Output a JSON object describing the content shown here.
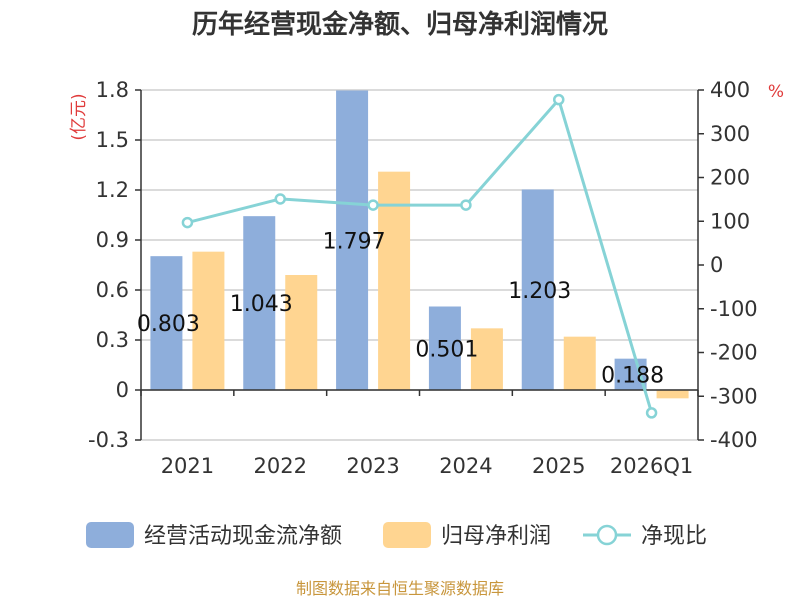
{
  "title": "历年经营现金净额、归母净利润情况",
  "source": "制图数据来自恒生聚源数据库",
  "chart_data": {
    "type": "bar",
    "categories": [
      "2021",
      "2022",
      "2023",
      "2024",
      "2025",
      "2026Q1"
    ],
    "left_axis": {
      "unit": "(亿元)",
      "ylim": [
        -0.3,
        1.8
      ],
      "ticks": [
        "1.8",
        "1.5",
        "1.2",
        "0.9",
        "0.6",
        "0.3",
        "0",
        "-0.3"
      ]
    },
    "right_axis": {
      "unit": "%",
      "ylim": [
        -400,
        400
      ],
      "ticks": [
        "400",
        "300",
        "200",
        "100",
        "0",
        "-100",
        "-200",
        "-300",
        "-400"
      ]
    },
    "series": [
      {
        "name": "经营活动现金流净额",
        "type": "bar",
        "axis": "left",
        "color": "#8eaedb",
        "values": [
          0.803,
          1.043,
          1.797,
          0.501,
          1.203,
          0.188
        ],
        "labels": [
          "0.803",
          "1.043",
          "1.797",
          "0.501",
          "1.203",
          "0.188"
        ]
      },
      {
        "name": "归母净利润",
        "type": "bar",
        "axis": "left",
        "color": "#ffd591",
        "values": [
          0.83,
          0.69,
          1.31,
          0.37,
          0.32,
          -0.05
        ]
      },
      {
        "name": "净现比",
        "type": "line",
        "axis": "right",
        "color": "#86d3d6",
        "values": [
          97,
          151,
          137,
          137,
          378,
          -338
        ]
      }
    ],
    "grid": true,
    "legend_position": "bottom"
  }
}
